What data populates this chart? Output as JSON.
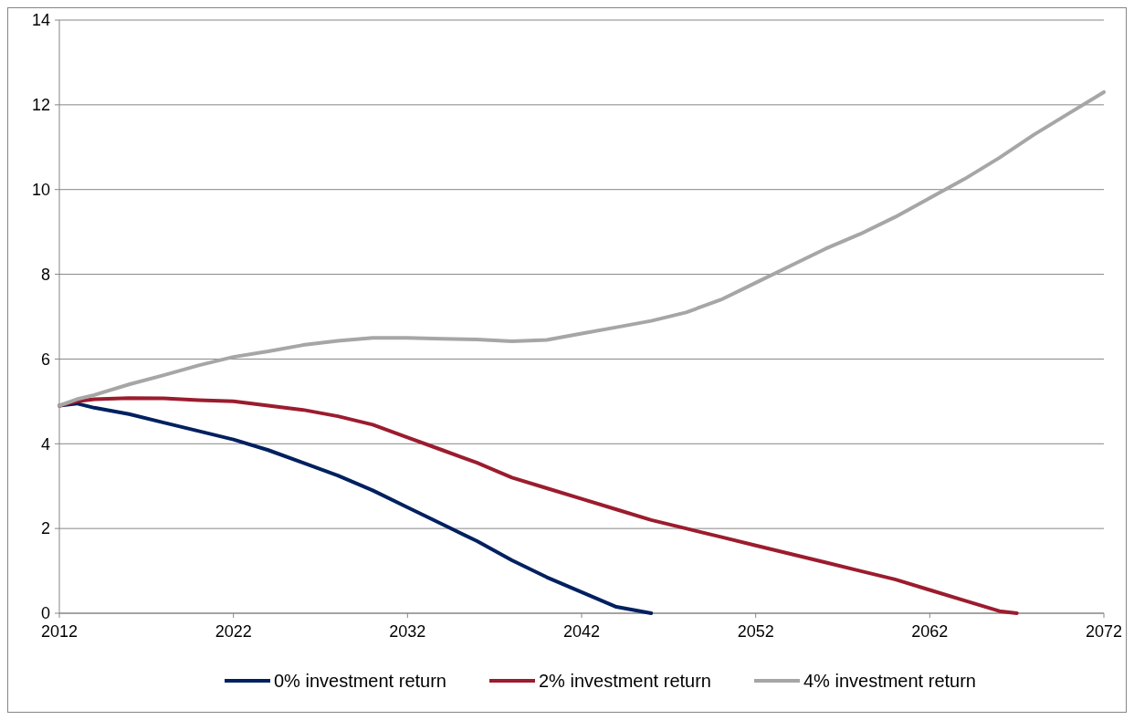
{
  "chart_data": {
    "type": "line",
    "x": [
      2012,
      2013,
      2014,
      2016,
      2018,
      2020,
      2022,
      2024,
      2026,
      2028,
      2030,
      2032,
      2034,
      2036,
      2038,
      2040,
      2042,
      2044,
      2046,
      2048,
      2050,
      2052,
      2054,
      2056,
      2058,
      2060,
      2062,
      2064,
      2066,
      2068,
      2070,
      2072
    ],
    "series": [
      {
        "name": "0% investment return",
        "color": "#002060",
        "x": [
          2012,
          2013,
          2014,
          2016,
          2018,
          2020,
          2022,
          2024,
          2026,
          2028,
          2030,
          2032,
          2034,
          2036,
          2038,
          2040,
          2042,
          2044,
          2046
        ],
        "values": [
          4.9,
          4.95,
          4.85,
          4.7,
          4.5,
          4.3,
          4.1,
          3.85,
          3.55,
          3.25,
          2.9,
          2.5,
          2.1,
          1.7,
          1.25,
          0.85,
          0.5,
          0.15,
          0
        ]
      },
      {
        "name": "2% investment return",
        "color": "#9b1c2e",
        "x": [
          2012,
          2013,
          2014,
          2016,
          2018,
          2020,
          2022,
          2024,
          2026,
          2028,
          2030,
          2032,
          2034,
          2036,
          2038,
          2040,
          2042,
          2044,
          2046,
          2048,
          2050,
          2052,
          2054,
          2056,
          2058,
          2060,
          2062,
          2064,
          2066,
          2067
        ],
        "values": [
          4.9,
          5.0,
          5.05,
          5.08,
          5.07,
          5.03,
          5.0,
          4.9,
          4.8,
          4.65,
          4.45,
          4.15,
          3.85,
          3.55,
          3.2,
          2.95,
          2.7,
          2.45,
          2.2,
          2.0,
          1.8,
          1.6,
          1.4,
          1.2,
          1.0,
          0.8,
          0.55,
          0.3,
          0.05,
          0
        ]
      },
      {
        "name": "4% investment return",
        "color": "#a6a6a6",
        "values": [
          4.9,
          5.05,
          5.15,
          5.4,
          5.62,
          5.85,
          6.05,
          6.18,
          6.33,
          6.43,
          6.5,
          6.5,
          6.48,
          6.46,
          6.42,
          6.45,
          6.6,
          6.75,
          6.9,
          7.1,
          7.4,
          7.8,
          8.2,
          8.6,
          8.95,
          9.35,
          9.8,
          10.25,
          10.75,
          11.3,
          11.8,
          12.3
        ]
      }
    ],
    "xlim": [
      2012,
      2072
    ],
    "xticks": [
      2012,
      2022,
      2032,
      2042,
      2052,
      2062,
      2072
    ],
    "ylim": [
      0,
      14
    ],
    "yticks": [
      0,
      2,
      4,
      6,
      8,
      10,
      12,
      14
    ],
    "grid": "y",
    "legend": "bottom",
    "marker": "none",
    "line_style": "solid"
  }
}
